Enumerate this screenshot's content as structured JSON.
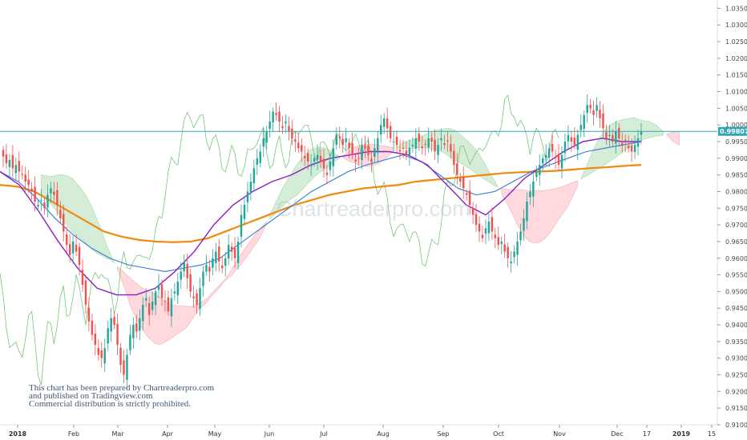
{
  "chart_data": {
    "type": "candlestick",
    "instrument_note": "Ichimoku cloud with moving averages",
    "x_axis": {
      "labels": [
        "2018",
        "Feb",
        "Mar",
        "Apr",
        "May",
        "Jun",
        "Jul",
        "Aug",
        "Sep",
        "Oct",
        "Nov",
        "Dec",
        "17",
        "2019",
        "15"
      ],
      "bold_labels": [
        "2018",
        "2019"
      ]
    },
    "y_axis": {
      "ylim": [
        0.91,
        1.0375
      ],
      "ticks": [
        "1.03500",
        "1.03000",
        "1.02500",
        "1.02000",
        "1.01500",
        "1.01000",
        "1.00500",
        "1.00000",
        "0.99500",
        "0.99000",
        "0.98500",
        "0.98000",
        "0.97500",
        "0.97000",
        "0.96500",
        "0.96000",
        "0.95500",
        "0.95000",
        "0.94500",
        "0.94000",
        "0.93500",
        "0.93000",
        "0.92500",
        "0.92000",
        "0.91500",
        "0.91000"
      ],
      "position": "right"
    },
    "current_price": {
      "value": 0.99807,
      "label": "0.99807"
    },
    "candles_close": [
      0.9905,
      0.9885,
      0.9895,
      0.987,
      0.988,
      0.986,
      0.985,
      0.983,
      0.982,
      0.98,
      0.977,
      0.976,
      0.9775,
      0.975,
      0.979,
      0.981,
      0.979,
      0.976,
      0.972,
      0.968,
      0.964,
      0.961,
      0.965,
      0.962,
      0.958,
      0.952,
      0.946,
      0.941,
      0.937,
      0.934,
      0.931,
      0.93,
      0.933,
      0.939,
      0.942,
      0.94,
      0.934,
      0.928,
      0.925,
      0.931,
      0.937,
      0.94,
      0.938,
      0.942,
      0.946,
      0.948,
      0.943,
      0.947,
      0.95,
      0.952,
      0.948,
      0.947,
      0.944,
      0.948,
      0.95,
      0.953,
      0.956,
      0.959,
      0.954,
      0.95,
      0.948,
      0.946,
      0.951,
      0.956,
      0.958,
      0.956,
      0.96,
      0.962,
      0.959,
      0.957,
      0.96,
      0.964,
      0.962,
      0.96,
      0.965,
      0.973,
      0.976,
      0.98,
      0.983,
      0.987,
      0.99,
      0.992,
      0.996,
      0.998,
      1.001,
      1.004,
      1.003,
      1.001,
      0.999,
      1.001,
      0.998,
      0.996,
      0.995,
      0.993,
      0.992,
      0.99,
      0.989,
      0.988,
      0.99,
      0.991,
      0.989,
      0.987,
      0.985,
      0.989,
      0.993,
      0.997,
      0.996,
      0.994,
      0.996,
      0.993,
      0.991,
      0.989,
      0.99,
      0.994,
      0.993,
      0.991,
      0.989,
      0.993,
      0.996,
      1.0,
      1.002,
      0.999,
      0.996,
      0.995,
      0.994,
      0.992,
      0.993,
      0.991,
      0.993,
      0.994,
      0.996,
      0.995,
      0.993,
      0.994,
      0.996,
      0.995,
      0.992,
      0.994,
      0.996,
      0.994,
      0.995,
      0.992,
      0.988,
      0.985,
      0.983,
      0.981,
      0.979,
      0.976,
      0.973,
      0.97,
      0.968,
      0.966,
      0.969,
      0.971,
      0.968,
      0.966,
      0.964,
      0.965,
      0.962,
      0.96,
      0.959,
      0.962,
      0.965,
      0.968,
      0.972,
      0.977,
      0.98,
      0.983,
      0.986,
      0.988,
      0.99,
      0.991,
      0.993,
      0.992,
      0.99,
      0.988,
      0.991,
      0.995,
      0.997,
      0.995,
      0.994,
      0.997,
      1.0,
      1.003,
      1.006,
      1.005,
      1.003,
      1.006,
      1.002,
      0.999,
      0.996,
      0.997,
      0.995,
      0.998,
      0.996,
      0.994,
      0.995,
      0.993,
      0.992,
      0.994,
      0.996,
      0.9981
    ],
    "ma_200": [
      0.982,
      0.9815,
      0.98,
      0.977,
      0.974,
      0.971,
      0.968,
      0.9665,
      0.9655,
      0.965,
      0.9648,
      0.965,
      0.966,
      0.968,
      0.97,
      0.972,
      0.974,
      0.976,
      0.9775,
      0.979,
      0.98,
      0.981,
      0.9815,
      0.982,
      0.983,
      0.9835,
      0.984,
      0.9845,
      0.985,
      0.9855,
      0.9858,
      0.986,
      0.9862,
      0.9866,
      0.987,
      0.9873,
      0.9877,
      0.988
    ],
    "ma_50": [
      0.986,
      0.983,
      0.978,
      0.972,
      0.967,
      0.963,
      0.96,
      0.958,
      0.957,
      0.956,
      0.957,
      0.958,
      0.96,
      0.964,
      0.968,
      0.972,
      0.976,
      0.98,
      0.983,
      0.986,
      0.988,
      0.9895,
      0.991,
      0.989,
      0.985,
      0.981,
      0.979,
      0.98,
      0.983,
      0.986,
      0.988,
      0.99,
      0.992,
      0.993,
      0.994,
      0.995
    ],
    "ma_20": [
      0.986,
      0.982,
      0.974,
      0.965,
      0.957,
      0.951,
      0.949,
      0.949,
      0.951,
      0.956,
      0.962,
      0.97,
      0.976,
      0.98,
      0.983,
      0.985,
      0.988,
      0.99,
      0.991,
      0.992,
      0.992,
      0.991,
      0.988,
      0.982,
      0.976,
      0.973,
      0.978,
      0.984,
      0.988,
      0.992,
      0.995,
      0.996,
      0.995,
      0.995
    ]
  },
  "watermark": "Chartreaderpro.com",
  "disclaimer": {
    "line1": "This chart has been prepared by Chartreaderpro.com",
    "line2": "and published on Tradingview.com",
    "line3": "Commercial distribution is strictly prohibited."
  },
  "colors": {
    "up": "#26a69a",
    "down": "#ef5350",
    "ma200": "#f0890e",
    "ma50": "#2f7dd0",
    "ma20": "#8a1ec4",
    "cloud_bull": "#c8e6c9",
    "cloud_bear": "#ffcdd2",
    "price_line": "#31a7b3",
    "lagging_span": "#76c776"
  }
}
